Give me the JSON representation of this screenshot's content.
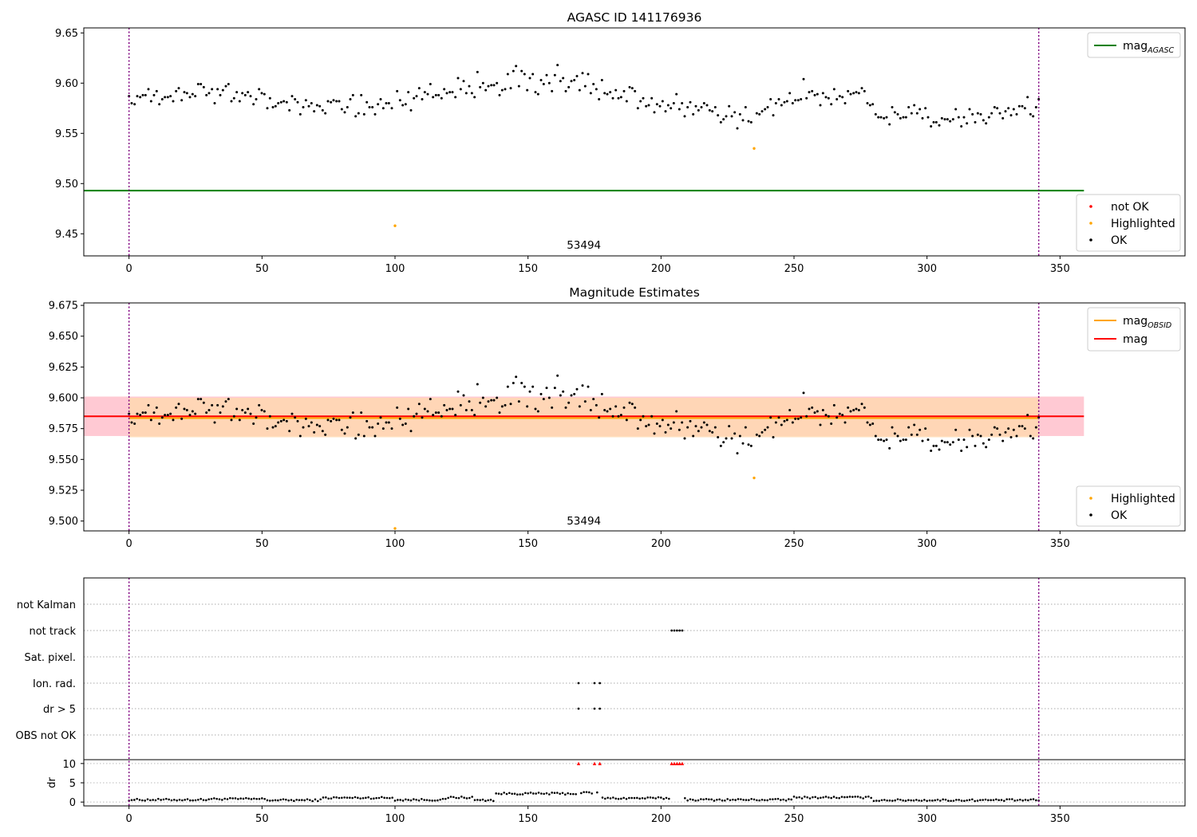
{
  "colors": {
    "ok": "#000000",
    "highlighted": "#ffa500",
    "not_ok": "#ff0000",
    "agasc_line": "#008000",
    "obsid_line": "#ffa500",
    "mag_line": "#ff0000",
    "vline": "#800080",
    "band_mag": "#ffc0cb",
    "band_obsid": "#ffd8b0"
  },
  "chart_data": [
    {
      "type": "scatter",
      "title": "AGASC ID 141176936",
      "xlim": [
        -17,
        397
      ],
      "ylim": [
        9.428,
        9.655
      ],
      "xticks": [
        0,
        50,
        100,
        150,
        200,
        250,
        300,
        350
      ],
      "yticks": [
        9.45,
        9.5,
        9.55,
        9.6,
        9.65
      ],
      "ytick_labels": [
        "9.45",
        "9.50",
        "9.55",
        "9.60",
        "9.65"
      ],
      "vlines": [
        0,
        342
      ],
      "hlines": [
        {
          "name": "mag",
          "subscript": "AGASC",
          "y": 9.493,
          "x0": -17,
          "x1": 359,
          "color": "#008000"
        }
      ],
      "annotation": {
        "text": "53494",
        "x": 171,
        "y": 9.439
      },
      "legend_lines": [
        {
          "label": "mag",
          "subscript": "AGASC",
          "color": "#008000"
        }
      ],
      "legend_points": [
        {
          "label": "not OK",
          "color": "#ff0000"
        },
        {
          "label": "Highlighted",
          "color": "#ffa500"
        },
        {
          "label": "OK",
          "color": "#000000"
        }
      ],
      "highlighted": [
        [
          100,
          9.458
        ],
        [
          235,
          9.535
        ]
      ],
      "series": [
        {
          "name": "OK",
          "color": "#000000",
          "values": []
        }
      ]
    },
    {
      "type": "scatter",
      "title": "Magnitude Estimates",
      "xlim": [
        -17,
        397
      ],
      "ylim": [
        9.492,
        9.677
      ],
      "xticks": [
        0,
        50,
        100,
        150,
        200,
        250,
        300,
        350
      ],
      "yticks": [
        9.5,
        9.525,
        9.55,
        9.575,
        9.6,
        9.625,
        9.65,
        9.675
      ],
      "ytick_labels": [
        "9.500",
        "9.525",
        "9.550",
        "9.575",
        "9.600",
        "9.625",
        "9.650",
        "9.675"
      ],
      "vlines": [
        0,
        342
      ],
      "bands": [
        {
          "y0": 9.569,
          "y1": 9.601,
          "x0": -17,
          "x1": 359,
          "color": "#ffc0cb"
        },
        {
          "y0": 9.568,
          "y1": 9.6,
          "x0": 0,
          "x1": 342,
          "color": "#ffd8b0"
        }
      ],
      "hlines": [
        {
          "name": "mag",
          "subscript": "OBSID",
          "y": 9.5835,
          "x0": 0,
          "x1": 342,
          "color": "#ffa500"
        },
        {
          "name": "mag",
          "y": 9.585,
          "x0": -17,
          "x1": 359,
          "color": "#ff0000"
        }
      ],
      "annotation": {
        "text": "53494",
        "x": 171,
        "y": 9.5005
      },
      "legend_lines": [
        {
          "label": "mag",
          "subscript": "OBSID",
          "color": "#ffa500"
        },
        {
          "label": "mag",
          "color": "#ff0000"
        }
      ],
      "legend_points": [
        {
          "label": "Highlighted",
          "color": "#ffa500"
        },
        {
          "label": "OK",
          "color": "#000000"
        }
      ],
      "highlighted": [
        [
          100,
          9.494
        ],
        [
          235,
          9.535
        ]
      ],
      "series": [
        {
          "name": "OK",
          "color": "#000000",
          "values": []
        }
      ]
    },
    {
      "type": "scatter",
      "xlim": [
        -17,
        397
      ],
      "xticks": [
        0,
        50,
        100,
        150,
        200,
        250,
        300,
        350
      ],
      "vlines": [
        0,
        342
      ],
      "flag_categories": [
        "not Kalman",
        "not track",
        "Sat. pixel.",
        "Ion. rad.",
        "dr > 5",
        "OBS not OK"
      ],
      "flags": {
        "not track": [
          204,
          205,
          206,
          207,
          208
        ],
        "Ion. rad.": [
          169,
          175,
          177
        ],
        "dr > 5": [
          169,
          175,
          177
        ]
      },
      "dr": {
        "ylabel": "dr",
        "yticks": [
          0,
          5,
          10
        ],
        "ylim": [
          -1,
          11
        ],
        "clipped_at": 10,
        "clipped_x": [
          169,
          175,
          177,
          204,
          205,
          206,
          207,
          208
        ],
        "segments": [
          [
            0,
            30,
            0.6
          ],
          [
            30,
            52,
            0.8
          ],
          [
            52,
            73,
            0.5
          ],
          [
            73,
            100,
            1.1
          ],
          [
            100,
            120,
            0.6
          ],
          [
            120,
            130,
            1.2
          ],
          [
            130,
            138,
            0.5
          ],
          [
            138,
            170,
            2.2
          ],
          [
            170,
            178,
            2.4
          ],
          [
            178,
            210,
            1.0
          ],
          [
            210,
            250,
            0.6
          ],
          [
            250,
            280,
            1.2
          ],
          [
            280,
            342,
            0.5
          ]
        ]
      },
      "series": []
    }
  ]
}
